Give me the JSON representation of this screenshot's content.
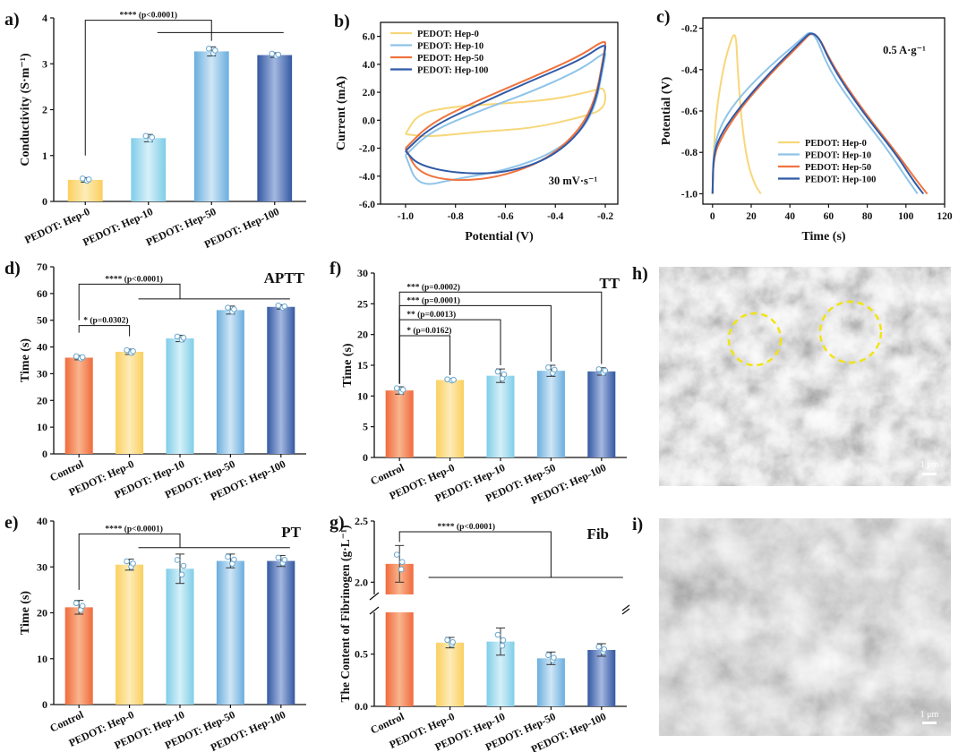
{
  "colors": {
    "control": "#f2845c",
    "hep0": "#fcd87e",
    "hep10": "#9fd9ee",
    "hep50": "#86bee3",
    "hep100": "#4a6fb5",
    "cv_hep0": "#f7d77a",
    "cv_hep10": "#8fc4e8",
    "cv_hep50": "#f0733f",
    "cv_hep100": "#2f5aa8",
    "circle": "#f2e313"
  },
  "panels": {
    "a": {
      "label": "a)"
    },
    "b": {
      "label": "b)"
    },
    "c": {
      "label": "c)"
    },
    "d": {
      "label": "d)"
    },
    "e": {
      "label": "e)"
    },
    "f": {
      "label": "f)"
    },
    "g": {
      "label": "g)"
    },
    "h": {
      "label": "h)",
      "scalebar": "1 μm"
    },
    "i": {
      "label": "i)",
      "scalebar": "1 μm"
    }
  },
  "chart_data": [
    {
      "id": "a",
      "type": "bar",
      "categories": [
        "PEDOT: Hep-0",
        "PEDOT: Hep-10",
        "PEDOT: Hep-50",
        "PEDOT: Hep-100"
      ],
      "values": [
        0.47,
        1.38,
        3.27,
        3.19
      ],
      "errors": [
        0.05,
        0.08,
        0.1,
        0.05
      ],
      "ylabel": "Conductivity (S·m⁻¹)",
      "ylim": [
        0,
        4
      ],
      "yticks": [
        0,
        1,
        2,
        3,
        4
      ],
      "significance": [
        {
          "text": "**** (p<0.0001)"
        }
      ]
    },
    {
      "id": "b",
      "type": "line",
      "xlabel": "Potential (V)",
      "ylabel": "Current (mA)",
      "xlim": [
        -1.1,
        -0.15
      ],
      "ylim": [
        -6,
        7
      ],
      "xticks": [
        -1.0,
        -0.8,
        -0.6,
        -0.4,
        -0.2
      ],
      "xticklabels": [
        "-1.0",
        "-0.8",
        "-0.6",
        "-0.4",
        "-0.2"
      ],
      "yticks": [
        -6,
        -4,
        -2,
        0,
        2,
        4,
        6
      ],
      "yticklabels": [
        "-6.0",
        "-4.0",
        "-2.0",
        "0.0",
        "2.0",
        "4.0",
        "6.0"
      ],
      "annotation": "30 mV·s⁻¹",
      "legend": "top-left",
      "series": [
        {
          "name": "PEDOT: Hep-0",
          "x": [
            -1.0,
            -0.95,
            -0.8,
            -0.6,
            -0.4,
            -0.25,
            -0.2,
            -0.2,
            -0.3,
            -0.5,
            -0.7,
            -0.9,
            -1.0
          ],
          "y": [
            -1.0,
            0.5,
            1.0,
            1.2,
            1.5,
            2.1,
            2.4,
            0.8,
            0.2,
            -0.6,
            -0.8,
            -1.2,
            -1.0
          ]
        },
        {
          "name": "PEDOT: Hep-10",
          "x": [
            -1.0,
            -0.9,
            -0.7,
            -0.5,
            -0.3,
            -0.2,
            -0.2,
            -0.25,
            -0.4,
            -0.6,
            -0.8,
            -0.95,
            -1.0
          ],
          "y": [
            -2.5,
            -0.8,
            0.7,
            2.0,
            3.6,
            4.9,
            4.6,
            0.0,
            -2.3,
            -3.6,
            -4.2,
            -4.8,
            -2.5
          ]
        },
        {
          "name": "PEDOT: Hep-50",
          "x": [
            -1.0,
            -0.9,
            -0.7,
            -0.5,
            -0.3,
            -0.2,
            -0.2,
            -0.25,
            -0.4,
            -0.6,
            -0.8,
            -0.95,
            -1.0
          ],
          "y": [
            -2.0,
            -0.2,
            1.5,
            3.0,
            4.6,
            5.8,
            5.2,
            0.5,
            -2.5,
            -4.0,
            -4.4,
            -3.8,
            -2.0
          ]
        },
        {
          "name": "PEDOT: Hep-100",
          "x": [
            -1.0,
            -0.9,
            -0.7,
            -0.5,
            -0.3,
            -0.2,
            -0.2,
            -0.25,
            -0.4,
            -0.6,
            -0.8,
            -0.95,
            -1.0
          ],
          "y": [
            -2.2,
            -0.5,
            1.2,
            2.8,
            4.3,
            5.5,
            5.0,
            0.2,
            -2.6,
            -3.8,
            -3.8,
            -3.2,
            -2.2
          ]
        }
      ]
    },
    {
      "id": "c",
      "type": "line",
      "xlabel": "Time (s)",
      "ylabel": "Potential (V)",
      "xlim": [
        -5,
        120
      ],
      "ylim": [
        -1.05,
        -0.15
      ],
      "xticks": [
        0,
        20,
        40,
        60,
        80,
        100,
        120
      ],
      "xticklabels": [
        "0",
        "20",
        "40",
        "60",
        "80",
        "100",
        "120"
      ],
      "yticks": [
        -1.0,
        -0.8,
        -0.6,
        -0.4,
        -0.2
      ],
      "yticklabels": [
        "-1.0",
        "-0.8",
        "-0.6",
        "-0.4",
        "-0.2"
      ],
      "annotation": "0.5 A·g⁻¹",
      "legend": "bottom-right",
      "series": [
        {
          "name": "PEDOT: Hep-0",
          "x": [
            0,
            0.5,
            2,
            5,
            8,
            12,
            13,
            15,
            18,
            22,
            25
          ],
          "y": [
            -1.0,
            -0.8,
            -0.6,
            -0.42,
            -0.3,
            -0.2,
            -0.4,
            -0.65,
            -0.85,
            -0.96,
            -1.0
          ]
        },
        {
          "name": "PEDOT: Hep-10",
          "x": [
            0,
            0.5,
            5,
            15,
            30,
            45,
            52,
            60,
            75,
            90,
            100,
            106
          ],
          "y": [
            -1.0,
            -0.78,
            -0.65,
            -0.52,
            -0.38,
            -0.26,
            -0.2,
            -0.4,
            -0.6,
            -0.78,
            -0.92,
            -1.0
          ]
        },
        {
          "name": "PEDOT: Hep-50",
          "x": [
            0,
            0.5,
            5,
            15,
            30,
            45,
            53,
            62,
            78,
            95,
            105,
            111
          ],
          "y": [
            -1.0,
            -0.82,
            -0.72,
            -0.58,
            -0.42,
            -0.28,
            -0.2,
            -0.38,
            -0.6,
            -0.8,
            -0.93,
            -1.0
          ]
        },
        {
          "name": "PEDOT: Hep-100",
          "x": [
            0,
            0.5,
            5,
            15,
            30,
            45,
            53,
            62,
            78,
            95,
            104,
            109
          ],
          "y": [
            -1.0,
            -0.8,
            -0.7,
            -0.57,
            -0.41,
            -0.27,
            -0.2,
            -0.39,
            -0.61,
            -0.81,
            -0.94,
            -1.0
          ]
        }
      ]
    },
    {
      "id": "d",
      "type": "bar",
      "title": "APTT",
      "categories": [
        "Control",
        "PEDOT: Hep-0",
        "PEDOT: Hep-10",
        "PEDOT: Hep-50",
        "PEDOT: Hep-100"
      ],
      "values": [
        36,
        38.2,
        43.2,
        53.8,
        55
      ],
      "errors": [
        0.8,
        1.0,
        1.2,
        1.5,
        0.8
      ],
      "ylabel": "Time (s)",
      "ylim": [
        0,
        70
      ],
      "yticks": [
        0,
        10,
        20,
        30,
        40,
        50,
        60,
        70
      ],
      "significance": [
        {
          "text": "**** (p<0.0001)"
        },
        {
          "text": "* (p=0.0302)"
        }
      ]
    },
    {
      "id": "e",
      "type": "bar",
      "title": "PT",
      "categories": [
        "Control",
        "PEDOT: Hep-0",
        "PEDOT: Hep-10",
        "PEDOT: Hep-50",
        "PEDOT: Hep-100"
      ],
      "values": [
        21.2,
        30.5,
        29.6,
        31.3,
        31.3
      ],
      "errors": [
        1.5,
        1.2,
        3.2,
        1.5,
        1.2
      ],
      "ylabel": "Time (s)",
      "ylim": [
        0,
        40
      ],
      "yticks": [
        0,
        10,
        20,
        30,
        40
      ],
      "significance": [
        {
          "text": "**** (p<0.0001)"
        }
      ]
    },
    {
      "id": "f",
      "type": "bar",
      "title": "TT",
      "categories": [
        "Control",
        "PEDOT: Hep-0",
        "PEDOT: Hep-10",
        "PEDOT: Hep-50",
        "PEDOT: Hep-100"
      ],
      "values": [
        10.9,
        12.6,
        13.3,
        14.1,
        14.0
      ],
      "errors": [
        0.6,
        0.2,
        1.1,
        0.9,
        0.6
      ],
      "ylabel": "Time (s)",
      "ylim": [
        0,
        30
      ],
      "yticks": [
        0,
        5,
        10,
        15,
        20,
        25,
        30
      ],
      "significance": [
        {
          "text": "*** (p=0.0002)"
        },
        {
          "text": "*** (p=0.0001)"
        },
        {
          "text": "** (p=0.0013)"
        },
        {
          "text": "* (p=0.0162)"
        }
      ]
    },
    {
      "id": "g",
      "type": "bar",
      "title": "Fib",
      "categories": [
        "Control",
        "PEDOT: Hep-0",
        "PEDOT: Hep-10",
        "PEDOT: Hep-50",
        "PEDOT: Hep-100"
      ],
      "values": [
        2.15,
        0.61,
        0.62,
        0.46,
        0.54
      ],
      "errors": [
        0.15,
        0.05,
        0.13,
        0.06,
        0.06
      ],
      "ylabel": "The Content of Fibrinogen  (g·L⁻¹)",
      "yticks": [
        0.0,
        0.5,
        2.0,
        2.5
      ],
      "yticklabels": [
        "0.0",
        "0.5",
        "2.0",
        "2.5"
      ],
      "axis_break": [
        0.9,
        1.9
      ],
      "significance": [
        {
          "text": "**** (p<0.0001)"
        }
      ]
    }
  ]
}
